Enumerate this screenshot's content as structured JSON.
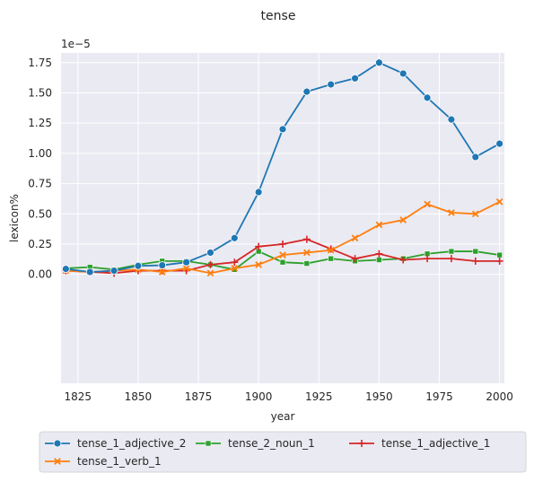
{
  "chart_data": {
    "type": "line",
    "title": "tense",
    "xlabel": "year",
    "ylabel": "lexicon%",
    "offset_label": "1e−5",
    "xlim": [
      1818,
      2002
    ],
    "ylim": [
      -9e-06,
      1.83e-05
    ],
    "xticks": [
      1825,
      1850,
      1875,
      1900,
      1925,
      1950,
      1975,
      2000
    ],
    "yticks": [
      0.0,
      2.5e-06,
      5e-06,
      7.5e-06,
      1e-05,
      1.25e-05,
      1.5e-05,
      1.75e-05
    ],
    "ytick_labels": [
      "0.00",
      "0.25",
      "0.50",
      "0.75",
      "1.00",
      "1.25",
      "1.50",
      "1.75"
    ],
    "grid": true,
    "legend_position": "below",
    "x": [
      1820,
      1830,
      1840,
      1850,
      1860,
      1870,
      1880,
      1890,
      1900,
      1910,
      1920,
      1930,
      1940,
      1950,
      1960,
      1970,
      1980,
      1990,
      2000
    ],
    "series": [
      {
        "name": "tense_1_adjective_2",
        "color": "#1f77b4",
        "marker": "circle",
        "values": [
          4.5e-07,
          2e-07,
          3e-07,
          7e-07,
          7.5e-07,
          1e-06,
          1.8e-06,
          3e-06,
          6.8e-06,
          1.2e-05,
          1.51e-05,
          1.57e-05,
          1.62e-05,
          1.75e-05,
          1.66e-05,
          1.46e-05,
          1.28e-05,
          9.7e-06,
          1.08e-05
        ]
      },
      {
        "name": "tense_1_verb_1",
        "color": "#ff7f0e",
        "marker": "x",
        "values": [
          3e-07,
          2e-07,
          3e-07,
          4e-07,
          2e-07,
          5e-07,
          1e-07,
          5e-07,
          8e-07,
          1.6e-06,
          1.8e-06,
          2e-06,
          3e-06,
          4.1e-06,
          4.5e-06,
          5.8e-06,
          5.1e-06,
          5e-06,
          6e-06
        ]
      },
      {
        "name": "tense_2_noun_1",
        "color": "#2ca02c",
        "marker": "square",
        "values": [
          5e-07,
          6e-07,
          4e-07,
          8e-07,
          1.1e-06,
          1.1e-06,
          8e-07,
          4e-07,
          1.9e-06,
          1e-06,
          9e-07,
          1.3e-06,
          1.1e-06,
          1.2e-06,
          1.3e-06,
          1.7e-06,
          1.9e-06,
          1.9e-06,
          1.6e-06
        ]
      },
      {
        "name": "tense_1_adjective_1",
        "color": "#d62728",
        "marker": "plus",
        "values": [
          3e-07,
          2e-07,
          1e-07,
          3e-07,
          3e-07,
          3e-07,
          8e-07,
          1e-06,
          2.3e-06,
          2.5e-06,
          2.9e-06,
          2.1e-06,
          1.3e-06,
          1.7e-06,
          1.2e-06,
          1.3e-06,
          1.3e-06,
          1.1e-06,
          1.1e-06
        ]
      }
    ]
  }
}
